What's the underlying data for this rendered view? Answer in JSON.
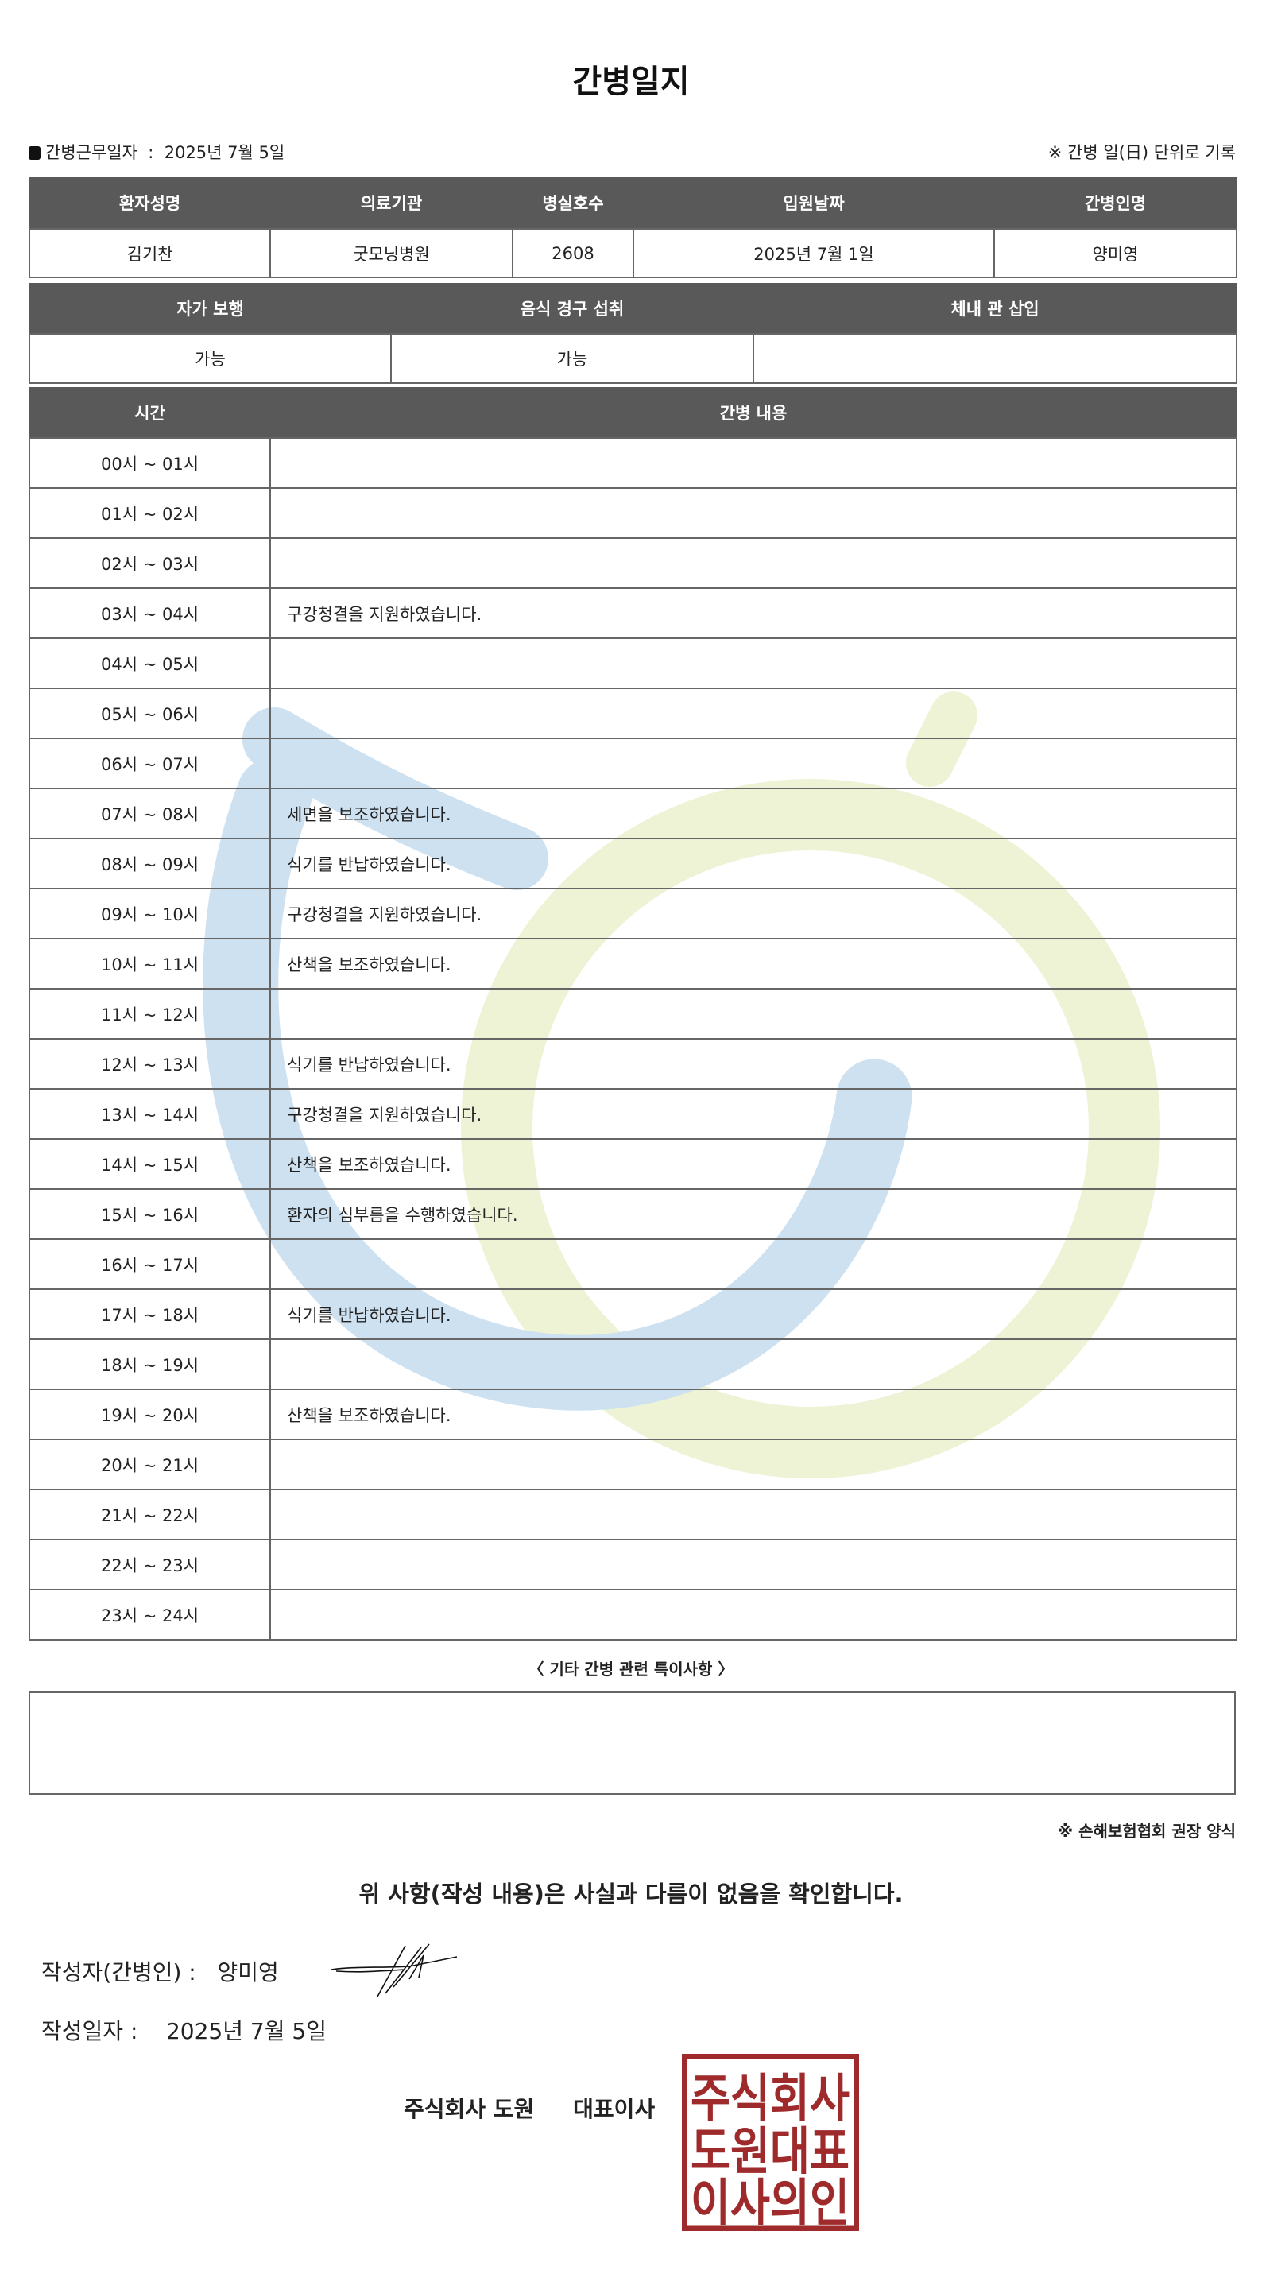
{
  "title": "간병일지",
  "work_date": {
    "label": "간병근무일자",
    "sep": ":",
    "value": "2025년 7월 5일"
  },
  "unit_note": "※ 간병 일(日) 단위로 기록",
  "patient_table": {
    "headers": [
      "환자성명",
      "의료기관",
      "병실호수",
      "입원날짜",
      "간병인명"
    ],
    "values": [
      "김기찬",
      "굿모닝병원",
      "2608",
      "2025년 7월 1일",
      "양미영"
    ]
  },
  "status_table": {
    "headers": [
      "자가 보행",
      "음식 경구 섭취",
      "체내 관 삽입"
    ],
    "values": [
      "가능",
      "가능",
      ""
    ]
  },
  "log_table": {
    "headers": [
      "시간",
      "간병 내용"
    ],
    "rows": [
      {
        "time": "00시 ~ 01시",
        "content": ""
      },
      {
        "time": "01시 ~ 02시",
        "content": ""
      },
      {
        "time": "02시 ~ 03시",
        "content": ""
      },
      {
        "time": "03시 ~ 04시",
        "content": "구강청결을 지원하였습니다."
      },
      {
        "time": "04시 ~ 05시",
        "content": ""
      },
      {
        "time": "05시 ~ 06시",
        "content": ""
      },
      {
        "time": "06시 ~ 07시",
        "content": ""
      },
      {
        "time": "07시 ~ 08시",
        "content": "세면을 보조하였습니다."
      },
      {
        "time": "08시 ~ 09시",
        "content": "식기를 반납하였습니다."
      },
      {
        "time": "09시 ~ 10시",
        "content": "구강청결을 지원하였습니다."
      },
      {
        "time": "10시 ~ 11시",
        "content": "산책을 보조하였습니다."
      },
      {
        "time": "11시 ~ 12시",
        "content": ""
      },
      {
        "time": "12시 ~ 13시",
        "content": "식기를 반납하였습니다."
      },
      {
        "time": "13시 ~ 14시",
        "content": "구강청결을 지원하였습니다."
      },
      {
        "time": "14시 ~ 15시",
        "content": "산책을 보조하였습니다."
      },
      {
        "time": "15시 ~ 16시",
        "content": "환자의 심부름을 수행하였습니다."
      },
      {
        "time": "16시 ~ 17시",
        "content": ""
      },
      {
        "time": "17시 ~ 18시",
        "content": "식기를 반납하였습니다."
      },
      {
        "time": "18시 ~ 19시",
        "content": ""
      },
      {
        "time": "19시 ~ 20시",
        "content": "산책을 보조하였습니다."
      },
      {
        "time": "20시 ~ 21시",
        "content": ""
      },
      {
        "time": "21시 ~ 22시",
        "content": ""
      },
      {
        "time": "22시 ~ 23시",
        "content": ""
      },
      {
        "time": "23시 ~ 24시",
        "content": ""
      }
    ]
  },
  "notes": {
    "label": "〈 기타 간병 관련 특이사항 〉",
    "value": ""
  },
  "form_note": "※ 손해보험협회 권장 양식",
  "confirm": "위 사항(작성 내용)은 사실과 다름이 없음을 확인합니다.",
  "writer": {
    "label": "작성자(간병인) :",
    "name": "양미영"
  },
  "written_date": {
    "label": "작성일자 :",
    "value": "2025년 7월 5일"
  },
  "company": {
    "name": "주식회사 도원",
    "title": "대표이사"
  },
  "stamp": {
    "lines": [
      "주식회사",
      "도원대표",
      "이사의인"
    ],
    "color": "#9e2a2b"
  },
  "colors": {
    "header_bg": "#595959",
    "watermark_blue": "#cde1f1",
    "watermark_green": "#eef3d5"
  }
}
